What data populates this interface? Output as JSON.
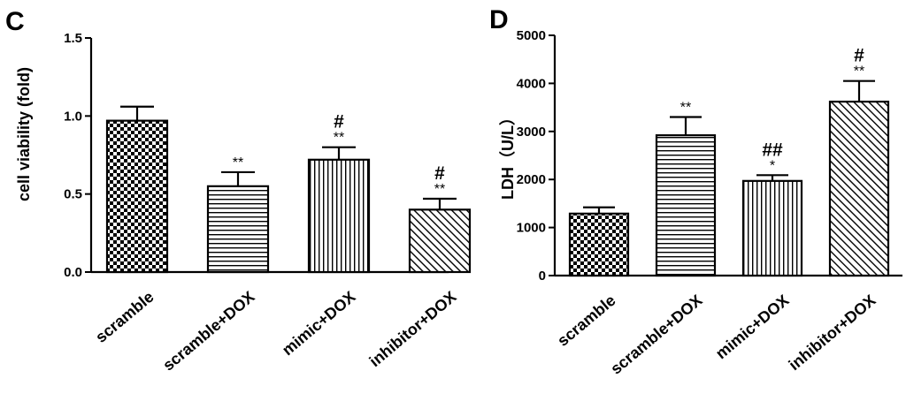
{
  "chart_data": [
    {
      "type": "bar",
      "panel": "C",
      "title": "",
      "xlabel": "",
      "ylabel": "cell viability (fold)",
      "ylim": [
        0,
        1.5
      ],
      "yticks": [
        "0.0",
        "0.5",
        "1.0",
        "1.5"
      ],
      "categories": [
        "scramble",
        "scramble+DOX",
        "mimic+DOX",
        "inhibitor+DOX"
      ],
      "values": [
        0.97,
        0.55,
        0.72,
        0.4
      ],
      "errors": [
        0.09,
        0.09,
        0.08,
        0.07
      ],
      "fill_patterns": [
        "checker",
        "horizontal",
        "vertical",
        "diagonal"
      ],
      "annotations": [
        {
          "stars": "",
          "hash": ""
        },
        {
          "stars": "**",
          "hash": ""
        },
        {
          "stars": "**",
          "hash": "#"
        },
        {
          "stars": "**",
          "hash": "#"
        }
      ]
    },
    {
      "type": "bar",
      "panel": "D",
      "title": "",
      "xlabel": "",
      "ylabel": "LDH（U/L）",
      "ylim": [
        0,
        5000
      ],
      "yticks": [
        "0",
        "1000",
        "2000",
        "3000",
        "4000",
        "5000"
      ],
      "categories": [
        "scramble",
        "scramble+DOX",
        "mimic+DOX",
        "inhibitor+DOX"
      ],
      "values": [
        1290,
        2920,
        1970,
        3620
      ],
      "errors": [
        130,
        380,
        120,
        430
      ],
      "fill_patterns": [
        "checker",
        "horizontal",
        "vertical",
        "diagonal"
      ],
      "annotations": [
        {
          "stars": "",
          "hash": ""
        },
        {
          "stars": "**",
          "hash": ""
        },
        {
          "stars": "*",
          "hash": "##"
        },
        {
          "stars": "**",
          "hash": "#"
        }
      ]
    }
  ]
}
